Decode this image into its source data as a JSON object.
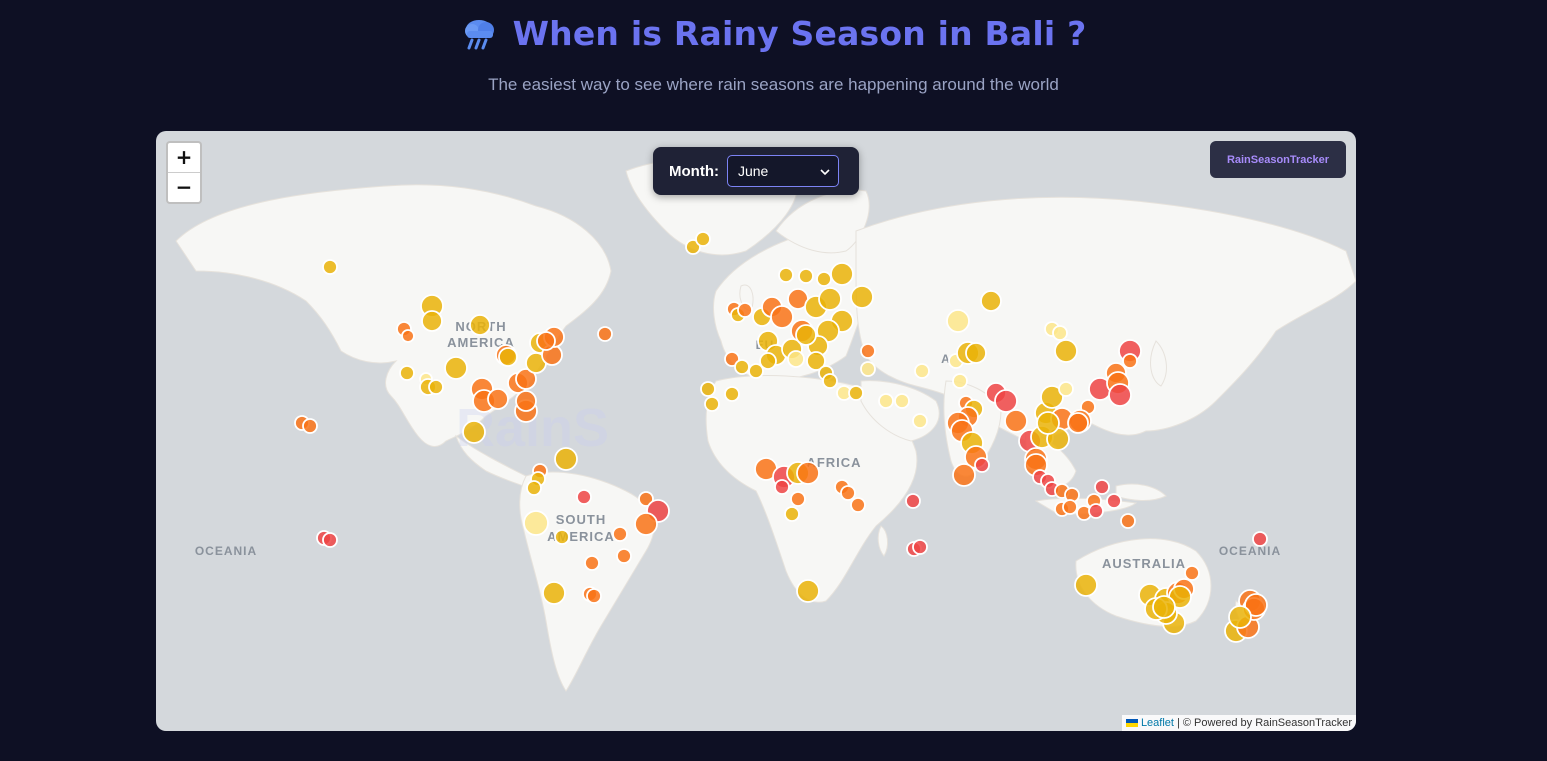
{
  "header": {
    "title": "When is Rainy Season in Bali ?",
    "subtitle": "The easiest way to see where rain seasons are happening around the world",
    "icon": "rain-cloud-icon",
    "title_color": "#6b73f0"
  },
  "map": {
    "zoom_in_label": "+",
    "zoom_out_label": "−",
    "month_label": "Month:",
    "month_value": "June",
    "brand_label": "RainSeasonTracker",
    "attribution_link": "Leaflet",
    "attribution_text": "| © Powered by RainSeasonTracker",
    "watermark": "RainS",
    "region_labels": [
      {
        "line1": "NORTH",
        "line2": "AMERICA"
      },
      {
        "line1": "SOUTH",
        "line2": "AMERICA"
      },
      {
        "line1": "AFRICA"
      },
      {
        "line1": "AUSTRALIA"
      },
      {
        "line1": "OCEANIA"
      },
      {
        "line1": "OCEANIA"
      },
      {
        "line1": "EU"
      },
      {
        "line1": "A"
      }
    ],
    "colors": {
      "water": "#d4d8dc",
      "land": "#f7f7f5",
      "rain_low": "#fde68a",
      "rain_mid": "#eab308",
      "rain_high": "#f97316",
      "rain_max": "#ef4444"
    }
  }
}
